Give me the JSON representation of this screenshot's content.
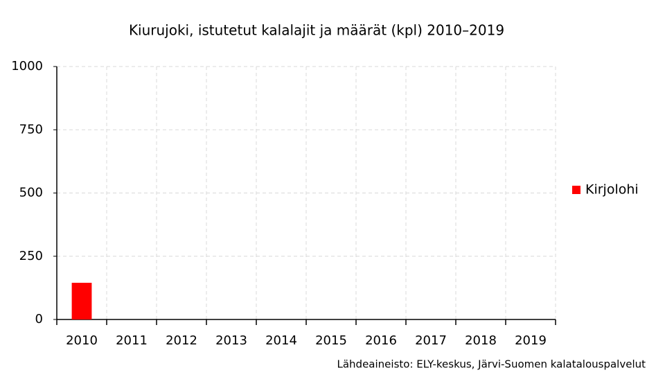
{
  "chart_data": {
    "type": "bar",
    "title": "Kiurujoki, istutetut kalalajit ja määrät (kpl) 2010–2019",
    "categories": [
      "2010",
      "2011",
      "2012",
      "2013",
      "2014",
      "2015",
      "2016",
      "2017",
      "2018",
      "2019"
    ],
    "series": [
      {
        "name": "Kirjolohi",
        "color": "#ff0000",
        "values": [
          145,
          0,
          0,
          0,
          0,
          0,
          0,
          0,
          0,
          0
        ]
      }
    ],
    "ylim": [
      0,
      1000
    ],
    "yticks": [
      0,
      250,
      500,
      750,
      1000
    ],
    "grid": true,
    "legend": "right",
    "source": "Lähdeaineisto: ELY-keskus, Järvi-Suomen kalatalouspalvelut"
  }
}
